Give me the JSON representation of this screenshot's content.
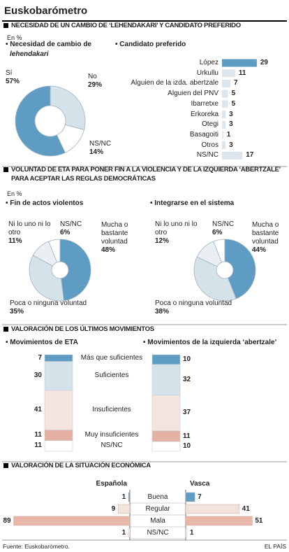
{
  "title": "Euskobarómetro",
  "source": "Fuente: Euskobarómetro.",
  "credit": "EL PAÍS",
  "chart_data": [
    {
      "type": "donut",
      "section": "NECESIDAD DE UN CAMBIO DE ‘LEHENDAKARI’ Y CANDIDATO PREFERIDO",
      "unit": "En %",
      "title": [
        "Necesidad de cambio de",
        "lehendakari"
      ],
      "categories": [
        "No",
        "NS/NC",
        "Sí"
      ],
      "values": [
        29,
        14,
        57
      ],
      "value_labels": [
        "29%",
        "14%",
        "57%"
      ],
      "colors": [
        "#d6e2ea",
        "#ffffff",
        "#5e9cc4"
      ]
    },
    {
      "type": "hbar",
      "title": "Candidato preferido",
      "categories": [
        "López",
        "Urkullu",
        "Alguien de la izda. abertzale",
        "Alguien del PNV",
        "Ibarretxe",
        "Erkoreka",
        "Otegi",
        "Basagoiti",
        "Otros",
        "NS/NC"
      ],
      "values": [
        29,
        11,
        7,
        5,
        5,
        3,
        3,
        1,
        3,
        17
      ],
      "colors": [
        "#5e9cc4",
        "#dde6ec",
        "#dde6ec",
        "#dde6ec",
        "#dde6ec",
        "#dde6ec",
        "#dde6ec",
        "#dde6ec",
        "#dde6ec",
        "#dde6ec"
      ]
    },
    {
      "type": "donut",
      "section": "VOLUNTAD DE ETA PARA PONER FIN A LA VIOLENCIA Y DE LA IZQUIERDA ‘ABERTZALE’ PARA ACEPTAR LAS REGLAS DEMOCRÁTICAS",
      "unit": "En %",
      "title": [
        "Fin de actos violentos"
      ],
      "categories": [
        "Mucha o bastante voluntad",
        "Poca o ninguna voluntad",
        "Ni lo uno ni lo otro",
        "NS/NC"
      ],
      "values": [
        48,
        35,
        11,
        6
      ],
      "value_labels": [
        "48%",
        "35%",
        "11%",
        "6%"
      ],
      "colors": [
        "#5e9cc4",
        "#d6e2ea",
        "#e9eff3",
        "#ffffff"
      ]
    },
    {
      "type": "donut",
      "title": [
        "Integrarse en el sistema"
      ],
      "categories": [
        "Mucha o bastante voluntad",
        "Poca o ninguna voluntad",
        "Ni lo uno ni lo otro",
        "NS/NC"
      ],
      "values": [
        44,
        38,
        12,
        6
      ],
      "value_labels": [
        "44%",
        "38%",
        "12%",
        "6%"
      ],
      "colors": [
        "#5e9cc4",
        "#d6e2ea",
        "#e9eff3",
        "#ffffff"
      ]
    },
    {
      "type": "stacked",
      "section": "VALORACIÓN DE LOS ÚLTIMOS MOVIMIENTOS",
      "categories": [
        "Más que suficientes",
        "Suficientes",
        "Insuficientes",
        "Muy insuficientes",
        "NS/NC"
      ],
      "colors": [
        "#5e9cc4",
        "#d6e2ea",
        "#f4e4df",
        "#e4b0a4",
        "#ffffff"
      ],
      "series": [
        {
          "name": "Movimientos de ETA",
          "values": [
            7,
            30,
            41,
            11,
            11
          ]
        },
        {
          "name": "Movimientos de la izquierda ‘abertzale’",
          "values": [
            10,
            32,
            37,
            11,
            10
          ]
        }
      ]
    },
    {
      "type": "butterfly",
      "section": "VALORACIÓN DE LA SITUACIÓN ECONÓMICA",
      "categories": [
        "Buena",
        "Regular",
        "Mala",
        "NS/NC"
      ],
      "colors": [
        "#5e9cc4",
        "#f1e2dc",
        "#e8b7aa",
        "#ffffff"
      ],
      "series": [
        {
          "name": "Española",
          "values": [
            1,
            9,
            89,
            1
          ]
        },
        {
          "name": "Vasca",
          "values": [
            7,
            41,
            51,
            1
          ]
        }
      ]
    }
  ]
}
